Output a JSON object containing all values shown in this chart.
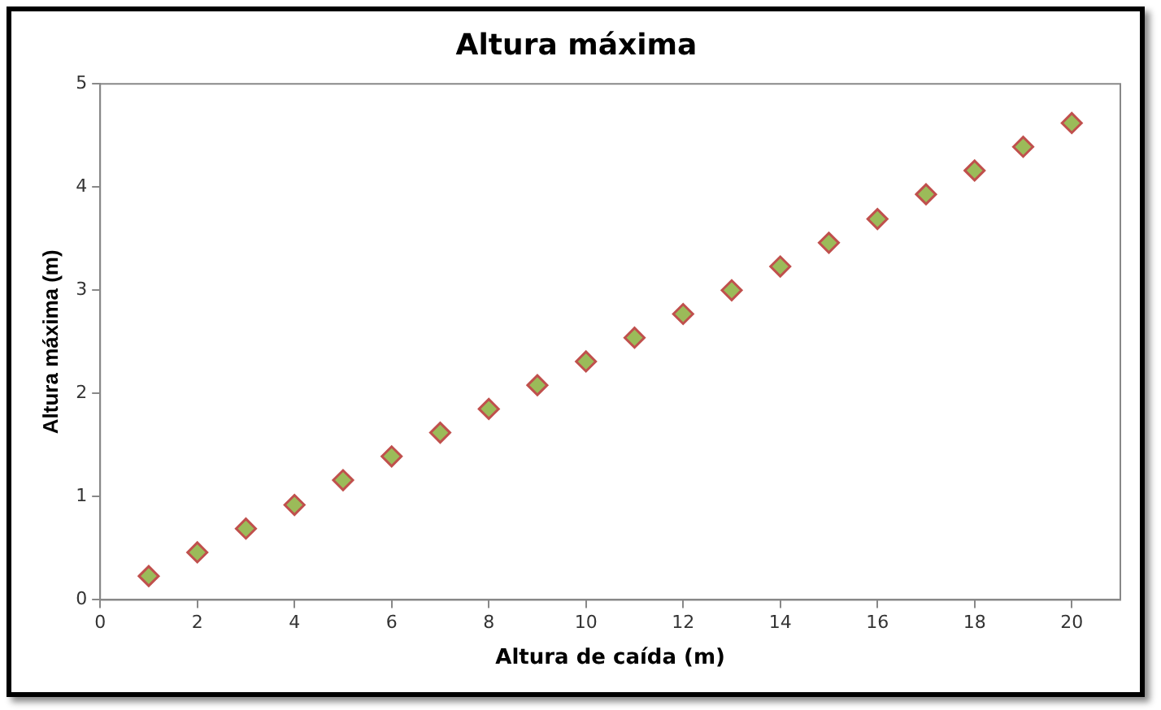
{
  "chart_data": {
    "type": "scatter",
    "title": "Altura máxima",
    "xlabel": "Altura de caída (m)",
    "ylabel": "Altura máxima (m)",
    "x": [
      1,
      2,
      3,
      4,
      5,
      6,
      7,
      8,
      9,
      10,
      11,
      12,
      13,
      14,
      15,
      16,
      17,
      18,
      19,
      20
    ],
    "series": [
      {
        "color": "#9bbb59",
        "values": [
          0.23,
          0.46,
          0.69,
          0.92,
          1.16,
          1.39,
          1.62,
          1.85,
          2.08,
          2.31,
          2.54,
          2.77,
          3.0,
          3.23,
          3.46,
          3.69,
          3.93,
          4.16,
          4.39,
          4.62
        ]
      }
    ],
    "xlim": [
      0,
      21
    ],
    "xticks": [
      0,
      2,
      4,
      6,
      8,
      10,
      12,
      14,
      16,
      18,
      20
    ],
    "ylim": [
      0,
      5
    ],
    "yticks": [
      0,
      1,
      2,
      3,
      4,
      5
    ],
    "grid": false,
    "legend": false,
    "marker": "diamond"
  }
}
